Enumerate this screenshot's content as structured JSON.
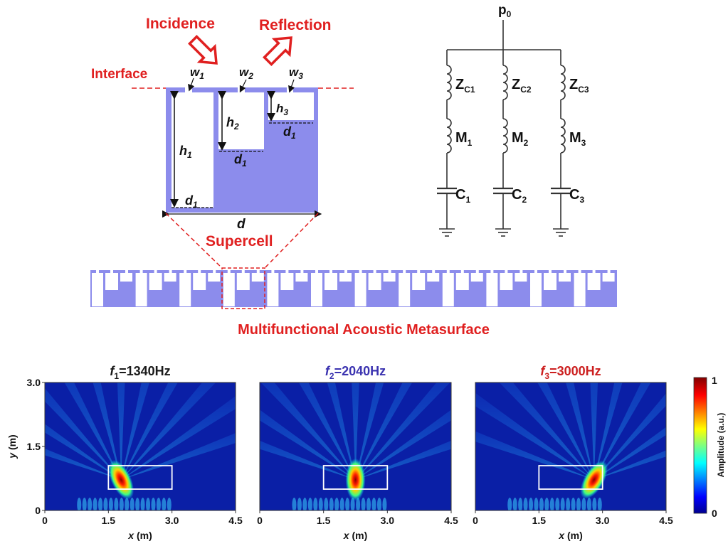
{
  "labels": {
    "incidence": "Incidence",
    "reflection": "Reflection",
    "interface": "Interface",
    "w1_base": "w",
    "w1_sub": "1",
    "w2_base": "w",
    "w2_sub": "2",
    "w3_base": "w",
    "w3_sub": "3",
    "h1_base": "h",
    "h1_sub": "1",
    "h2_base": "h",
    "h2_sub": "2",
    "h3_base": "h",
    "h3_sub": "3",
    "d1_base": "d",
    "d1_sub": "1",
    "d": "d",
    "supercell": "Supercell",
    "metasurface": "Multifunctional Acoustic Metasurface"
  },
  "circuit": {
    "source_base": "p",
    "source_sub": "0",
    "branches": [
      {
        "z_base": "Z",
        "z_sub": "C1",
        "m_base": "M",
        "m_sub": "1",
        "c_base": "C",
        "c_sub": "1"
      },
      {
        "z_base": "Z",
        "z_sub": "C2",
        "m_base": "M",
        "m_sub": "2",
        "c_base": "C",
        "c_sub": "2"
      },
      {
        "z_base": "Z",
        "z_sub": "C3",
        "m_base": "M",
        "m_sub": "3",
        "c_base": "C",
        "c_sub": "3"
      }
    ]
  },
  "fields": {
    "panels": [
      {
        "f_base": "f",
        "f_sub": "1",
        "f_value": "=1340Hz",
        "title_color": "#1a1a1a",
        "hotspot_x_m": 1.8
      },
      {
        "f_base": "f",
        "f_sub": "2",
        "f_value": "=2040Hz",
        "title_color": "#3b33b0",
        "hotspot_x_m": 2.25
      },
      {
        "f_base": "f",
        "f_sub": "3",
        "f_value": "=3000Hz",
        "title_color": "#cc1f1f",
        "hotspot_x_m": 2.8
      }
    ],
    "x_ticks": [
      "0",
      "1.5",
      "3.0",
      "4.5"
    ],
    "y_ticks": [
      "0",
      "1.5",
      "3.0"
    ],
    "x_label_var": "x",
    "x_label_unit": " (m)",
    "y_label_var": "y",
    "y_label_unit": " (m)",
    "x_range": [
      0,
      4.5
    ],
    "y_range": [
      0,
      3.0
    ],
    "box_x_range_m": [
      1.5,
      3.0
    ],
    "box_y_range_m": [
      0.5,
      1.05
    ],
    "colorbar": {
      "label": "Amplitude (a.u.)",
      "max": "1",
      "min": "0"
    }
  },
  "colors": {
    "accent_red": "#e02020",
    "structure_fill": "#8c8cec",
    "field_background": "#0a1fa6"
  }
}
